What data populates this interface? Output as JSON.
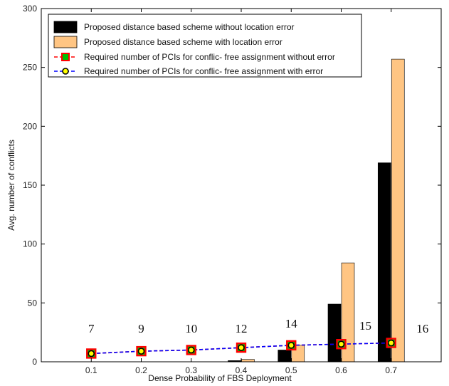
{
  "chart_data": {
    "type": "bar",
    "title": "",
    "xlabel": "Dense Probability of FBS Deployment",
    "ylabel": "Avg. number of conflicts",
    "categories": [
      "0.1",
      "0.2",
      "0.3",
      "0.4",
      "0.5",
      "0.6",
      "0.7"
    ],
    "x_ticks": [
      "0.1",
      "0.2",
      "0.3",
      "0.4",
      "0.5",
      "0.6",
      "0.7"
    ],
    "xlim": [
      0,
      0.8
    ],
    "ylim": [
      0,
      300
    ],
    "y_ticks": [
      "0",
      "50",
      "100",
      "150",
      "200",
      "250",
      "300"
    ],
    "grid": false,
    "legend_position": "top-left",
    "series": [
      {
        "name": "Proposed distance based scheme without location error",
        "kind": "bar",
        "color": "#000000",
        "values": [
          0,
          0,
          0,
          1,
          10,
          49,
          169
        ]
      },
      {
        "name": "Proposed distance based scheme with location error",
        "kind": "bar",
        "color": "#FFC583",
        "values": [
          0,
          0,
          0,
          2,
          14,
          84,
          257
        ]
      },
      {
        "name": "Required number of PCIs for conflic- free assignment without error",
        "kind": "line",
        "line_color": "#FF0000",
        "marker_edge": "#FF0000",
        "marker_fill": "#00C000",
        "marker": "square",
        "values": [
          7,
          9,
          10,
          12,
          14,
          15,
          16
        ]
      },
      {
        "name": "Required number of PCIs for conflic- free assignment with error",
        "kind": "line",
        "line_color": "#0000FF",
        "marker_edge": "#000000",
        "marker_fill": "#FFFF00",
        "marker": "circle",
        "values": [
          7,
          9,
          10,
          12,
          14,
          15,
          16
        ]
      }
    ],
    "annotations": [
      "7",
      "9",
      "10",
      "12",
      "14",
      "15",
      "16"
    ]
  }
}
